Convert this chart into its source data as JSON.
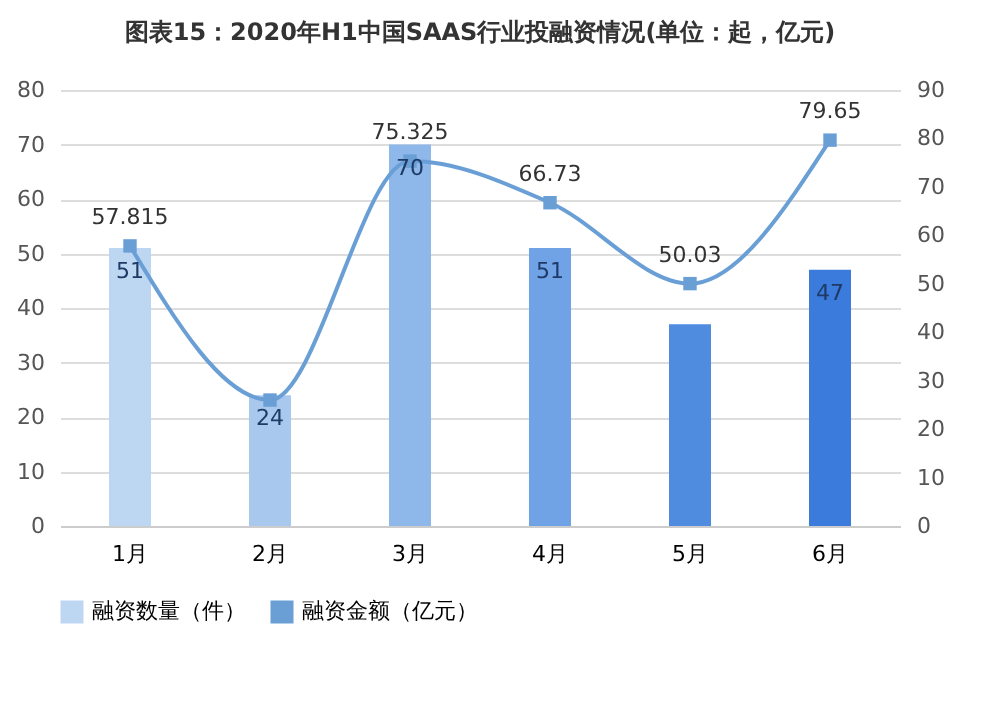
{
  "chart_data": {
    "type": "bar",
    "title": "图表15：2020年H1中国SAAS行业投融资情况(单位：起，亿元)",
    "categories": [
      "1月",
      "2月",
      "3月",
      "4月",
      "5月",
      "6月"
    ],
    "series": [
      {
        "name": "融资数量（件）",
        "color": "#bdd7f3",
        "colors": [
          "#bdd7f3",
          "#a9c8ee",
          "#8fb8ea",
          "#6fa3e6",
          "#4f8ce0",
          "#3a7bdc"
        ],
        "values": [
          51,
          24,
          70,
          51,
          37,
          47
        ],
        "value_labels": [
          "51",
          "24",
          "70",
          "51",
          null,
          "47"
        ]
      },
      {
        "name": "融资金额（亿元）",
        "type": "line",
        "axis": "y2",
        "color": "#6a9fd6",
        "marker": "square",
        "values": [
          57.815,
          26,
          75.325,
          66.73,
          50.03,
          79.65
        ],
        "value_labels": [
          "57.815",
          null,
          "75.325",
          "66.73",
          "50.03",
          "79.65"
        ]
      }
    ],
    "ylim": [
      0,
      80
    ],
    "yticks": [
      0,
      10,
      20,
      30,
      40,
      50,
      60,
      70,
      80
    ],
    "y2lim": [
      0,
      90
    ],
    "y2ticks": [
      0,
      10,
      20,
      30,
      40,
      50,
      60,
      70,
      80,
      90
    ],
    "grid": "y",
    "legend": "bottom"
  }
}
